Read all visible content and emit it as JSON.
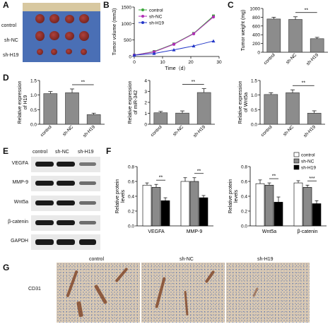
{
  "panels": {
    "A": {
      "letter": "A",
      "rows": [
        "control",
        "sh-NC",
        "sh-H19"
      ]
    },
    "B": {
      "letter": "B"
    },
    "C": {
      "letter": "C"
    },
    "D": {
      "letter": "D"
    },
    "E": {
      "letter": "E",
      "headers": [
        "control",
        "sh-NC",
        "sh-H19"
      ],
      "proteins": [
        "VEGFA",
        "MMP-9",
        "Wnt5a",
        "β-catenin",
        "GAPDH"
      ]
    },
    "F": {
      "letter": "F"
    },
    "G": {
      "letter": "G",
      "headers": [
        "control",
        "sh-NC",
        "sh-H19"
      ],
      "row_label": "CD31"
    }
  },
  "chart_data": [
    {
      "id": "B",
      "type": "line",
      "xlabel": "Time（d）",
      "ylabel": "Tumor volume (mm3)",
      "xlim": [
        0,
        30
      ],
      "ylim": [
        0,
        1500
      ],
      "xticks": [
        0,
        10,
        20,
        30
      ],
      "yticks": [
        0,
        500,
        1000,
        1500
      ],
      "series": [
        {
          "name": "control",
          "color": "#3aa63a",
          "marker": "square",
          "x": [
            0,
            7,
            14,
            21,
            28
          ],
          "y": [
            40,
            150,
            380,
            700,
            1230
          ]
        },
        {
          "name": "sh-NC",
          "color": "#b02fb5",
          "marker": "circle",
          "x": [
            0,
            7,
            14,
            21,
            28
          ],
          "y": [
            40,
            140,
            370,
            690,
            1200
          ]
        },
        {
          "name": "sh-H19",
          "color": "#2236c8",
          "marker": "triangle",
          "x": [
            0,
            7,
            14,
            21,
            28
          ],
          "y": [
            40,
            90,
            200,
            320,
            470
          ]
        }
      ]
    },
    {
      "id": "C",
      "type": "bar",
      "ylabel": "Tumor weight (mg)",
      "ylim": [
        0,
        1000
      ],
      "yticks": [
        0,
        200,
        400,
        600,
        800,
        1000
      ],
      "categories": [
        "control",
        "sh-NC",
        "sh-H19"
      ],
      "values": [
        760,
        750,
        310
      ],
      "errors": [
        40,
        60,
        30
      ],
      "sig": {
        "from": 1,
        "to": 2,
        "label": "**"
      }
    },
    {
      "id": "D1",
      "type": "bar",
      "ylabel": "Relative expression of H19",
      "ylim": [
        0,
        1.5
      ],
      "yticks": [
        0.0,
        0.5,
        1.0,
        1.5
      ],
      "categories": [
        "control",
        "sh-NC",
        "sh-H19"
      ],
      "values": [
        1.05,
        1.08,
        0.33
      ],
      "errors": [
        0.07,
        0.13,
        0.05
      ],
      "sig": {
        "from": 1,
        "to": 2,
        "label": "**"
      }
    },
    {
      "id": "D2",
      "type": "bar",
      "ylabel": "Relative expression of miR-342",
      "ylim": [
        0,
        4
      ],
      "yticks": [
        0,
        1,
        2,
        3,
        4
      ],
      "categories": [
        "control",
        "sh-NC",
        "sh-H19"
      ],
      "values": [
        1.05,
        1.02,
        2.9
      ],
      "errors": [
        0.12,
        0.2,
        0.35
      ],
      "sig": {
        "from": 1,
        "to": 2,
        "label": "**"
      }
    },
    {
      "id": "D3",
      "type": "bar",
      "ylabel": "Relative expression of Wnt5a",
      "ylim": [
        0,
        1.5
      ],
      "yticks": [
        0.0,
        0.5,
        1.0,
        1.5
      ],
      "categories": [
        "control",
        "sh-NC",
        "sh-H19"
      ],
      "values": [
        1.02,
        1.08,
        0.38
      ],
      "errors": [
        0.06,
        0.1,
        0.08
      ],
      "sig": {
        "from": 1,
        "to": 2,
        "label": "**"
      }
    },
    {
      "id": "F1",
      "type": "bar",
      "ylabel": "Relative protein levels",
      "ylim": [
        0,
        0.8
      ],
      "yticks": [
        0.0,
        0.2,
        0.4,
        0.6,
        0.8
      ],
      "categories": [
        "VEGFA",
        "MMP-9"
      ],
      "series": [
        {
          "name": "control",
          "color": "#ffffff",
          "values": [
            0.55,
            0.6
          ],
          "errors": [
            0.03,
            0.05
          ]
        },
        {
          "name": "sh-NC",
          "color": "#8a8a8a",
          "values": [
            0.52,
            0.6
          ],
          "errors": [
            0.04,
            0.05
          ]
        },
        {
          "name": "sh-H19",
          "color": "#000000",
          "values": [
            0.34,
            0.38
          ],
          "errors": [
            0.04,
            0.03
          ]
        }
      ],
      "sig": [
        {
          "group": 0,
          "label": "**"
        },
        {
          "group": 1,
          "label": "**"
        }
      ]
    },
    {
      "id": "F2",
      "type": "bar",
      "ylabel": "Relative protein levels",
      "ylim": [
        0,
        0.8
      ],
      "yticks": [
        0.0,
        0.2,
        0.4,
        0.6,
        0.8
      ],
      "categories": [
        "Wnt5a",
        "β-catenin"
      ],
      "legend": [
        "control",
        "sh-NC",
        "sh-H19"
      ],
      "series": [
        {
          "name": "control",
          "color": "#ffffff",
          "values": [
            0.57,
            0.58
          ],
          "errors": [
            0.05,
            0.03
          ]
        },
        {
          "name": "sh-NC",
          "color": "#8a8a8a",
          "values": [
            0.55,
            0.52
          ],
          "errors": [
            0.03,
            0.03
          ]
        },
        {
          "name": "sh-H19",
          "color": "#000000",
          "values": [
            0.32,
            0.3
          ],
          "errors": [
            0.07,
            0.04
          ]
        }
      ],
      "sig": [
        {
          "group": 0,
          "label": "**"
        },
        {
          "group": 1,
          "label": "***"
        }
      ]
    }
  ],
  "colors": {
    "tray": "#4a6fb5",
    "ruler": "#d8c8a0",
    "ihc_bg": "#d9c9b4"
  }
}
